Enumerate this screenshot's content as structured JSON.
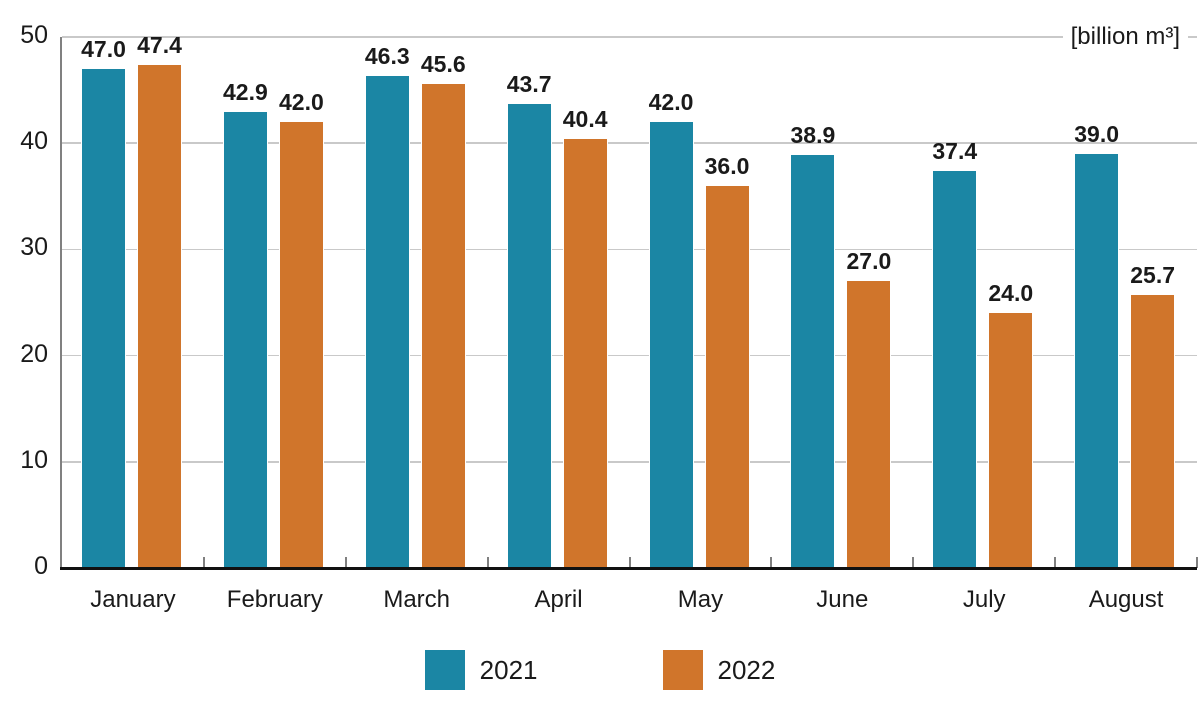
{
  "unit_label": "[billion m³]",
  "colors": {
    "series_2021": "#1B86A4",
    "series_2022": "#D0752B",
    "text": "#1A1A1A",
    "gridline": "#C9C9C9",
    "axis_bottom": "#111111",
    "axis_left": "#808080",
    "tick": "#808080",
    "background": "#FFFFFF"
  },
  "legend": {
    "items": [
      {
        "label": "2021",
        "color": "#1B86A4"
      },
      {
        "label": "2022",
        "color": "#D0752B"
      }
    ]
  },
  "chart_data": {
    "type": "bar",
    "categories": [
      "January",
      "February",
      "March",
      "April",
      "May",
      "June",
      "July",
      "August"
    ],
    "series": [
      {
        "name": "2021",
        "color": "#1B86A4",
        "values": [
          47.0,
          42.9,
          46.3,
          43.7,
          42.0,
          38.9,
          37.4,
          39.0
        ]
      },
      {
        "name": "2022",
        "color": "#D0752B",
        "values": [
          47.4,
          42.0,
          45.6,
          40.4,
          36.0,
          27.0,
          24.0,
          25.7
        ]
      }
    ],
    "title": "",
    "subtitle": "",
    "xlabel": "",
    "ylabel": "",
    "unit_annotation": "[billion m³]",
    "ylim": [
      0,
      50
    ],
    "yticks": [
      0,
      10,
      20,
      30,
      40,
      50
    ],
    "grid": "horizontal",
    "legend_position": "bottom",
    "value_labels": true,
    "value_labels_decimals": 1
  }
}
